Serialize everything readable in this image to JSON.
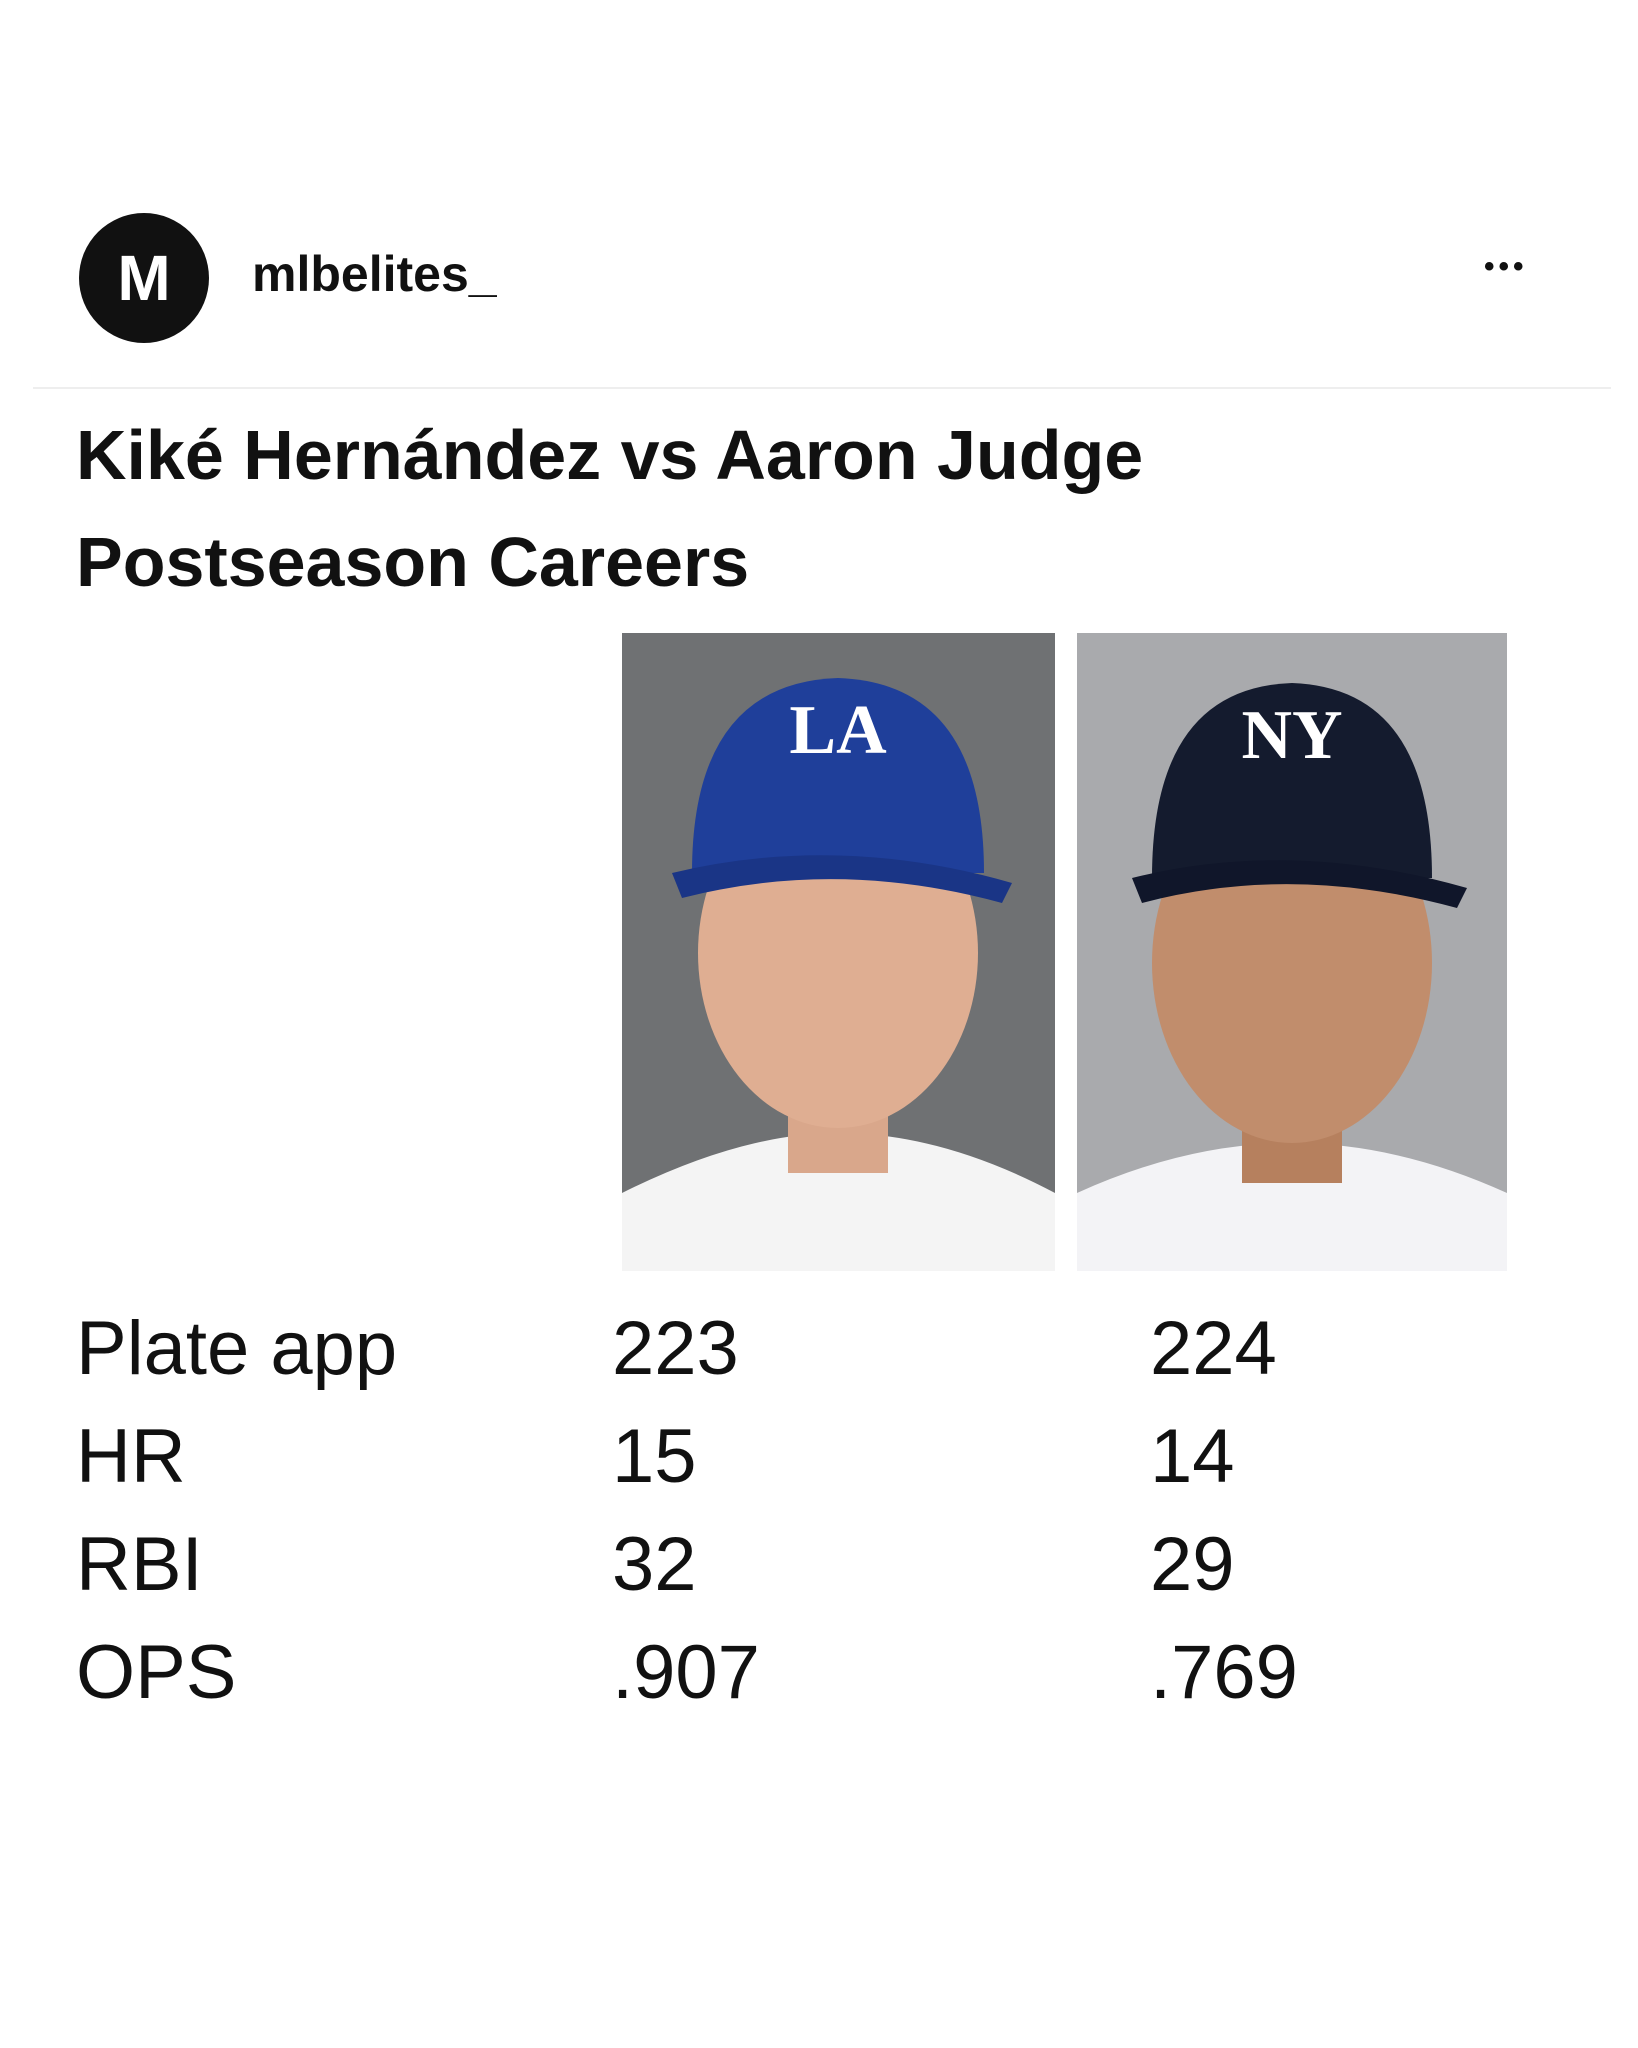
{
  "header": {
    "avatar_letter": "M",
    "username": "mlbelites_",
    "more": "•••"
  },
  "post": {
    "title_lines": [
      "Kiké Hernández vs Aaron Judge",
      "Postseason Careers"
    ],
    "table": {
      "rows": [
        [
          "Plate app",
          "223",
          "224"
        ],
        [
          "HR",
          "15",
          "14"
        ],
        [
          "RBI",
          "32",
          "29"
        ],
        [
          "OPS",
          ".907",
          ".769"
        ]
      ]
    }
  }
}
